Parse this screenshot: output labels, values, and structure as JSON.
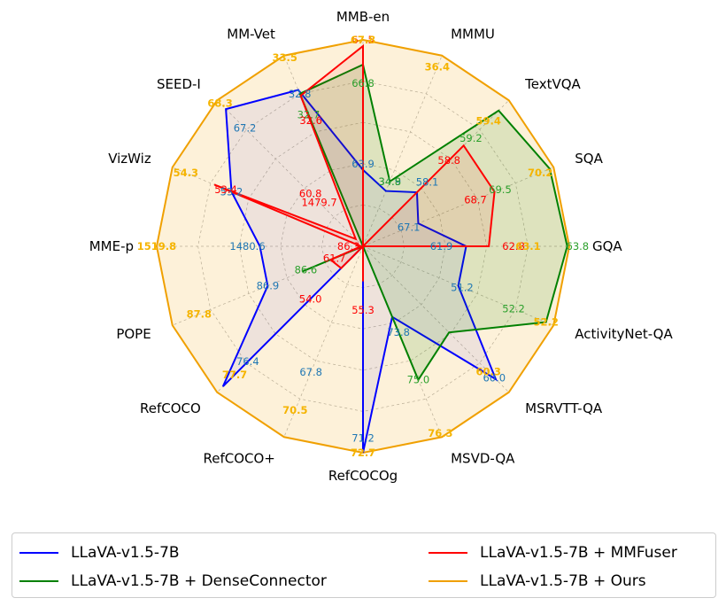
{
  "chart_data": {
    "type": "radar",
    "axes": [
      "MMB-en",
      "MMMU",
      "TextVQA",
      "SQA",
      "GQA",
      "ActivityNet-QA",
      "MSRVTT-QA",
      "MSVD-QA",
      "RefCOCOg",
      "RefCOCO+",
      "RefCOCO",
      "POPE",
      "MME-p",
      "VizWiz",
      "SEED-I",
      "MM-Vet"
    ],
    "series": [
      {
        "name": "LLaVA-v1.5-7B",
        "color": "#0000ff",
        "fill": false,
        "values": [
          63.9,
          34.9,
          58.1,
          67.1,
          61.9,
          51.2,
          60.0,
          73.8,
          71.2,
          67.8,
          76.4,
          86.9,
          1480.6,
          53.2,
          67.2,
          32.8
        ],
        "labels": [
          "63.9",
          "34.9",
          "58.1",
          "67.1",
          "61.9",
          "51.2",
          "60.0",
          "73.8",
          "71.2",
          "67.8",
          "76.4",
          "86.9",
          "1480.6",
          "53.2",
          "67.2",
          "32.8"
        ],
        "radii": [
          0.37,
          0.29,
          0.37,
          0.29,
          0.5,
          0.5,
          0.91,
          0.37,
          1.0,
          null,
          0.96,
          0.5,
          0.5,
          0.69,
          0.94,
          0.82
        ]
      },
      {
        "name": "LLaVA-v1.5-7B + DenseConnector",
        "color": "#008000",
        "fill": true,
        "values": [
          66.8,
          null,
          59.2,
          69.5,
          63.8,
          52.2,
          null,
          75.0,
          null,
          null,
          null,
          86.6,
          null,
          null,
          null,
          32.7
        ],
        "labels": [
          "66.8",
          "34.8",
          "59.2",
          "69.5",
          "63.8",
          "52.2",
          "",
          "75.0",
          "",
          "",
          "",
          "86.6",
          "",
          "",
          "",
          "32.7"
        ],
        "radii": [
          0.88,
          0.34,
          0.93,
          0.98,
          0.99,
          0.96,
          0.59,
          0.7,
          0.0,
          0.0,
          0.0,
          0.32,
          0.0,
          0.0,
          0.0,
          0.8
        ]
      },
      {
        "name": "LLaVA-v1.5-7B + MMFuser",
        "color": "#ff0000",
        "fill": true,
        "values": [
          67.5,
          null,
          58.8,
          68.7,
          62.8,
          null,
          null,
          null,
          55.3,
          null,
          54.0,
          61.7,
          86.3,
          53.4,
          1479.7,
          32.6
        ],
        "labels": [
          "67.5",
          "",
          "58.8",
          "68.7",
          "62.8",
          "",
          "",
          "",
          "55.3",
          "",
          "54.0",
          "61.7",
          "86.3",
          "53.4",
          "1479.7",
          "32.6"
        ],
        "radii": [
          0.97,
          0.0,
          0.69,
          0.69,
          0.61,
          0.0,
          0.0,
          0.0,
          0.17,
          0.0,
          0.15,
          0.17,
          0.01,
          0.78,
          0.05,
          0.79
        ]
      },
      {
        "name": "LLaVA-v1.5-7B + Ours",
        "color": "#f0a000",
        "fill": true,
        "values": [
          67.8,
          36.4,
          59.4,
          70.2,
          63.1,
          52.2,
          60.3,
          76.3,
          72.7,
          70.5,
          77.7,
          87.8,
          1519.8,
          54.3,
          68.3,
          33.5
        ],
        "labels": [
          "67.8",
          "36.4",
          "59.4",
          "70.2",
          "63.1",
          "52.2",
          "60.3",
          "76.3",
          "72.7",
          "70.5",
          "77.7",
          "87.8",
          "1519.8",
          "54.3",
          "68.3",
          "33.5"
        ],
        "radii": [
          1,
          1,
          1,
          1,
          1,
          1,
          1,
          1,
          1,
          1,
          1,
          1,
          1,
          1,
          1,
          1
        ]
      }
    ],
    "extra_labels": [
      {
        "text": "60.8",
        "series": 2,
        "axis": 14
      }
    ],
    "legend": "bottom",
    "grid": true
  },
  "legend_items": [
    {
      "label": "LLaVA-v1.5-7B",
      "color": "#0000ff"
    },
    {
      "label": "LLaVA-v1.5-7B + DenseConnector",
      "color": "#008000"
    },
    {
      "label": "LLaVA-v1.5-7B + MMFuser",
      "color": "#ff0000"
    },
    {
      "label": "LLaVA-v1.5-7B + Ours",
      "color": "#f0a000"
    }
  ]
}
